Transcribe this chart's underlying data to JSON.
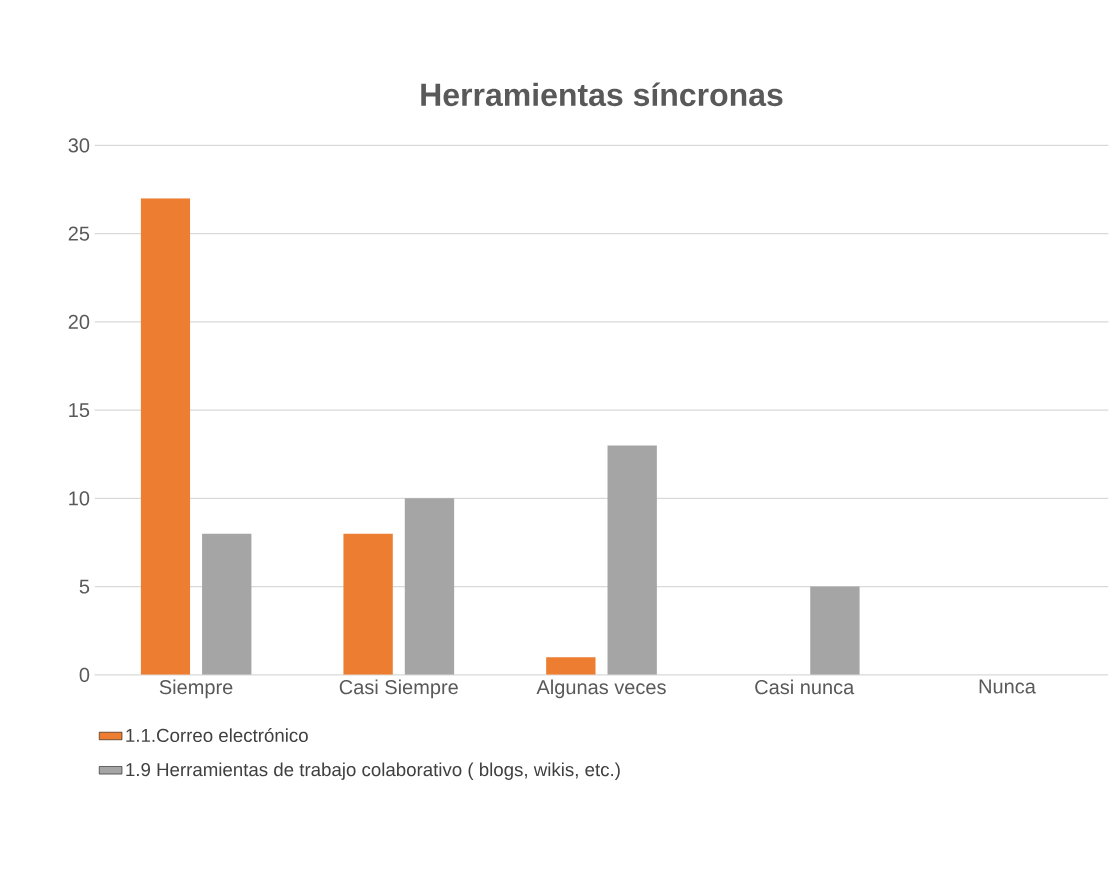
{
  "chart_data": {
    "type": "bar",
    "title": "Herramientas síncronas",
    "categories": [
      "Siempre",
      "Casi Siempre",
      "Algunas veces",
      "Casi nunca",
      "Nunca"
    ],
    "series": [
      {
        "name": "1.1.Correo electrónico",
        "color": "#ed7d31",
        "values": [
          27,
          8,
          1,
          0,
          0
        ]
      },
      {
        "name": "1.9 Herramientas de trabajo colaborativo ( blogs, wikis, etc.)",
        "color": "#a5a5a5",
        "values": [
          8,
          10,
          13,
          5,
          0
        ]
      }
    ],
    "ylim": [
      0,
      30
    ],
    "yticks": [
      0,
      5,
      10,
      15,
      20,
      25,
      30
    ],
    "grid": "y",
    "legend": "bottom left"
  }
}
